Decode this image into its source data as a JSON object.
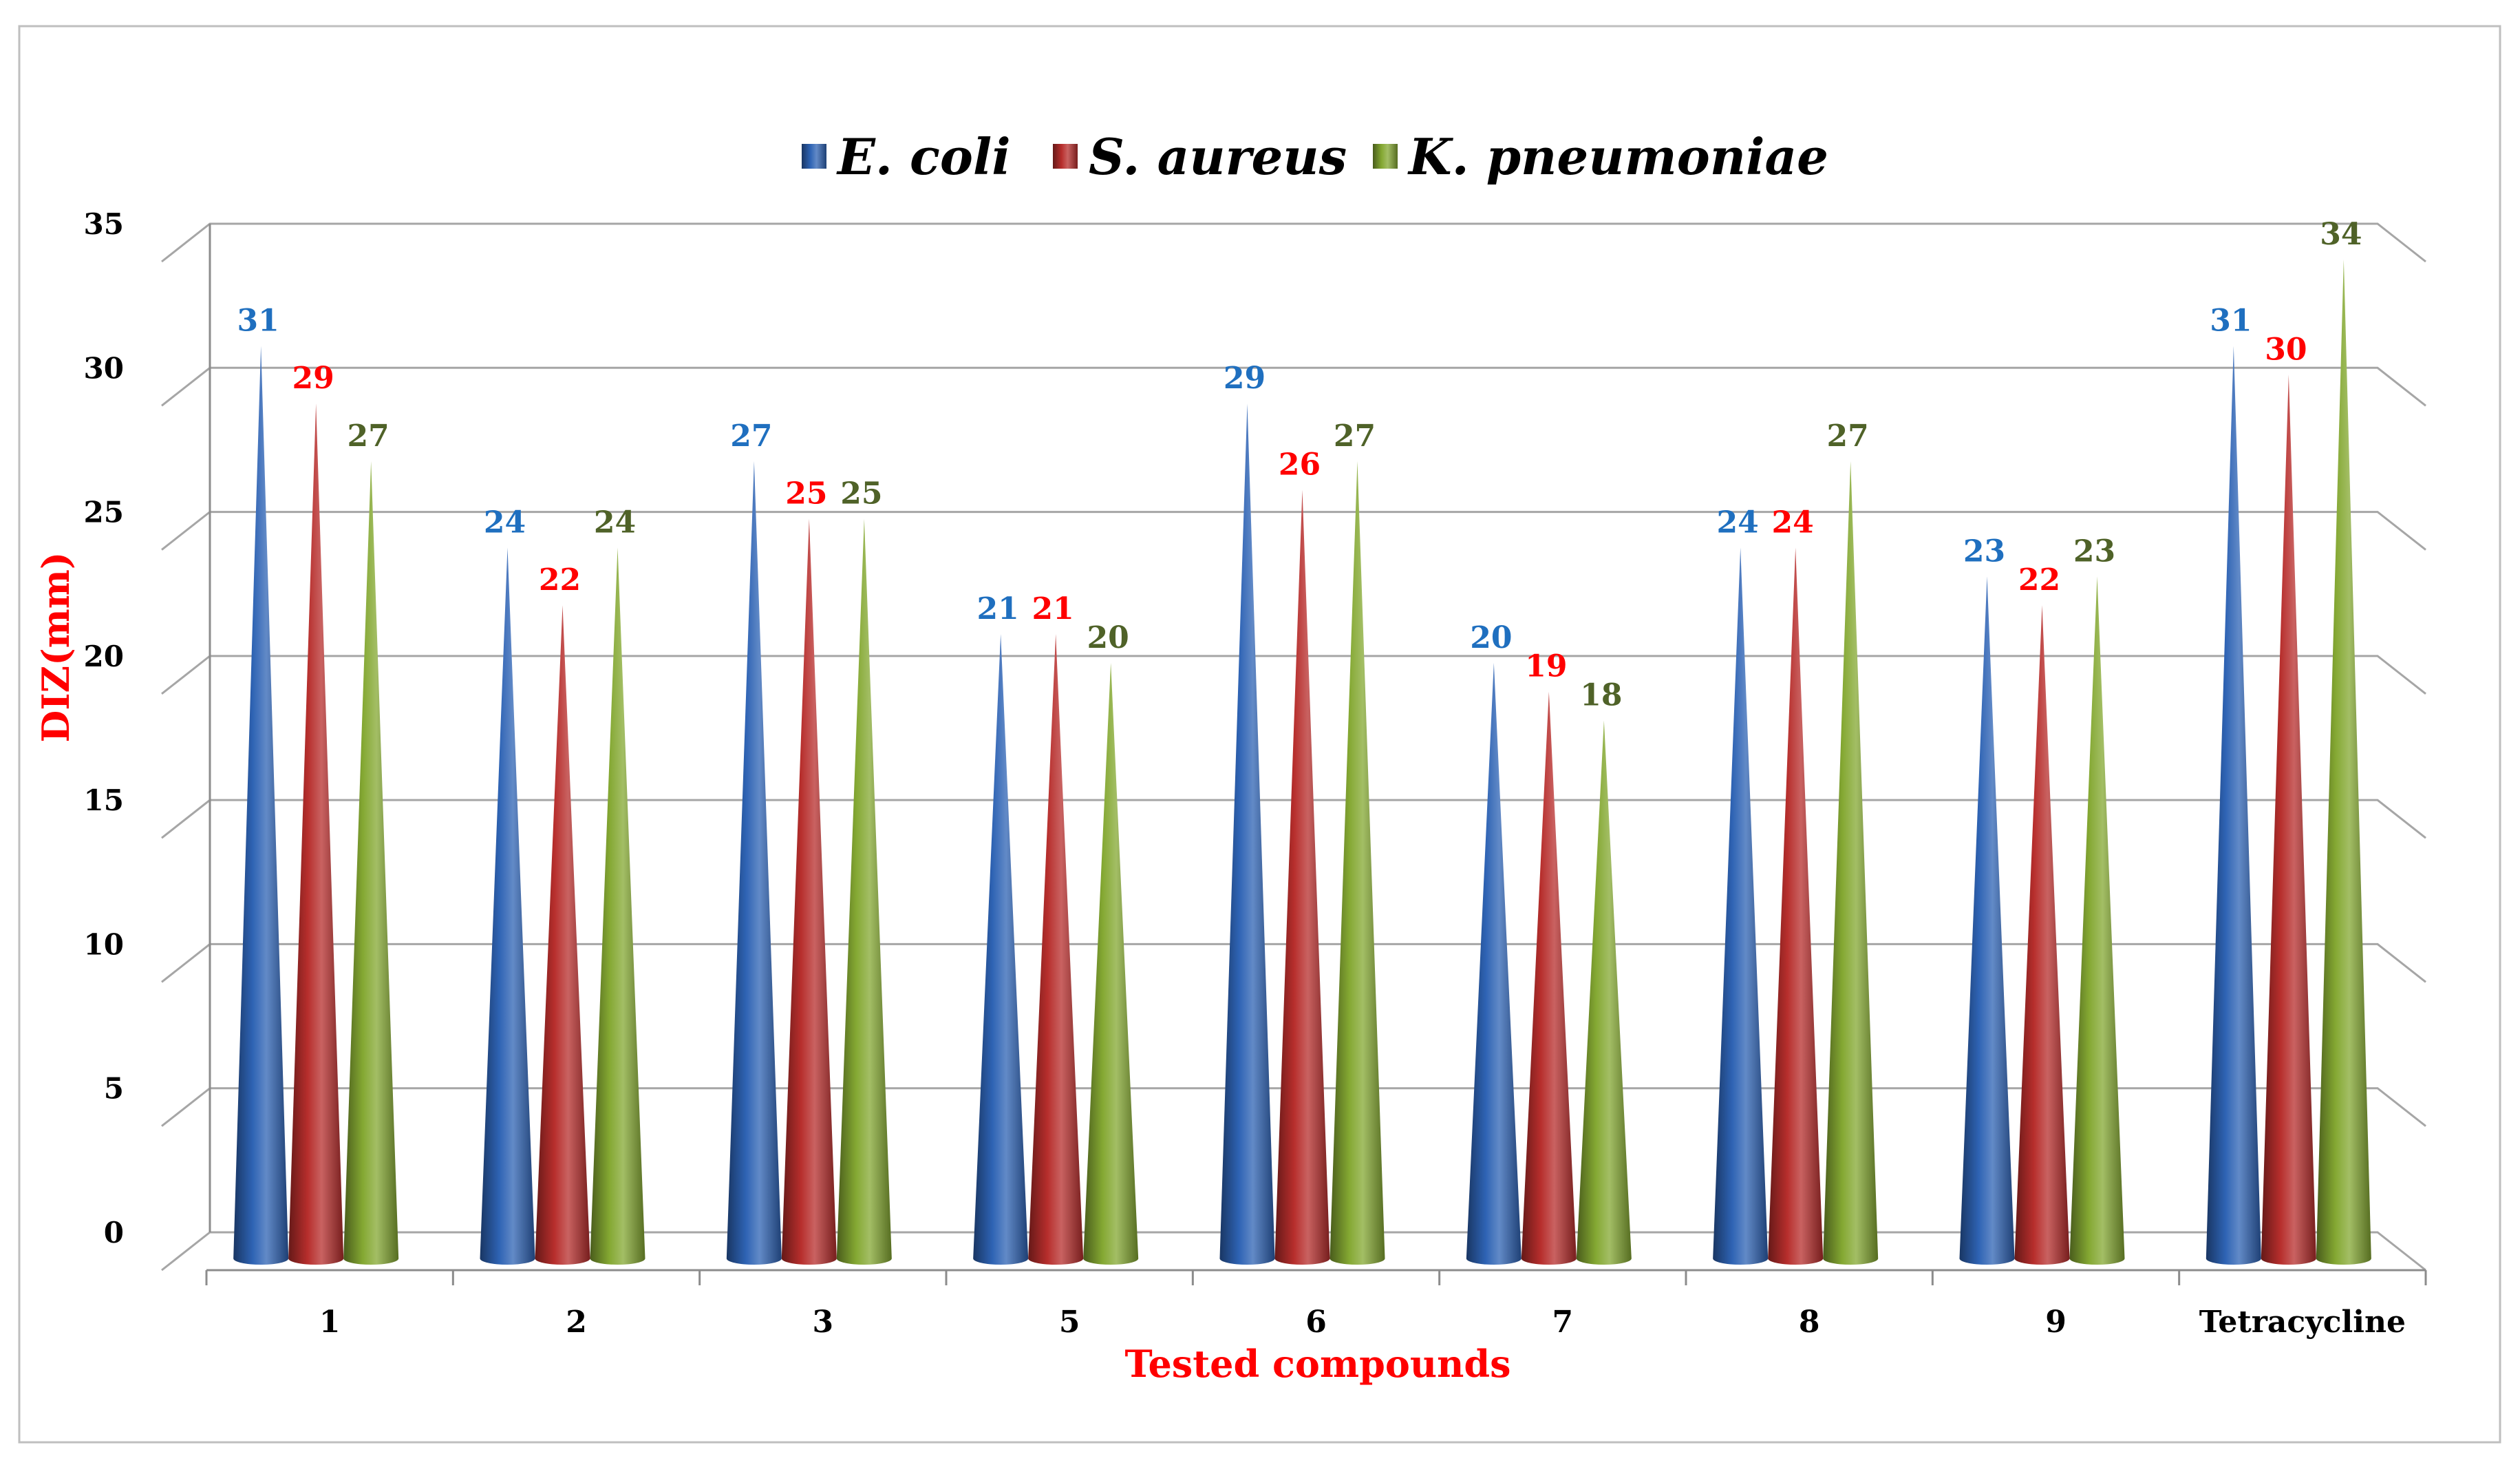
{
  "chart_data": {
    "type": "bar",
    "title": "",
    "xlabel": "Tested compounds",
    "ylabel": "DIZ(mm)",
    "categories": [
      "1",
      "2",
      "3",
      "5",
      "6",
      "7",
      "8",
      "9",
      "Tetracycline"
    ],
    "series": [
      {
        "name": "E. coli",
        "color": "#2e63b4",
        "label_color": "#1f6fbf",
        "values": [
          31,
          24,
          27,
          21,
          29,
          20,
          24,
          23,
          31
        ]
      },
      {
        "name": "S. aureus",
        "color": "#b72e2c",
        "label_color": "#ff0000",
        "values": [
          29,
          22,
          25,
          21,
          26,
          19,
          24,
          22,
          30
        ]
      },
      {
        "name": "K. pneumoniae",
        "color": "#84a832",
        "label_color": "#4f6228",
        "values": [
          27,
          24,
          25,
          20,
          27,
          18,
          27,
          23,
          34
        ]
      }
    ],
    "ylim": [
      0,
      35
    ],
    "yticks": [
      0,
      5,
      10,
      15,
      20,
      25,
      30,
      35
    ],
    "grid": true,
    "legend": "top-center",
    "shape": "cone",
    "style": "3d"
  }
}
